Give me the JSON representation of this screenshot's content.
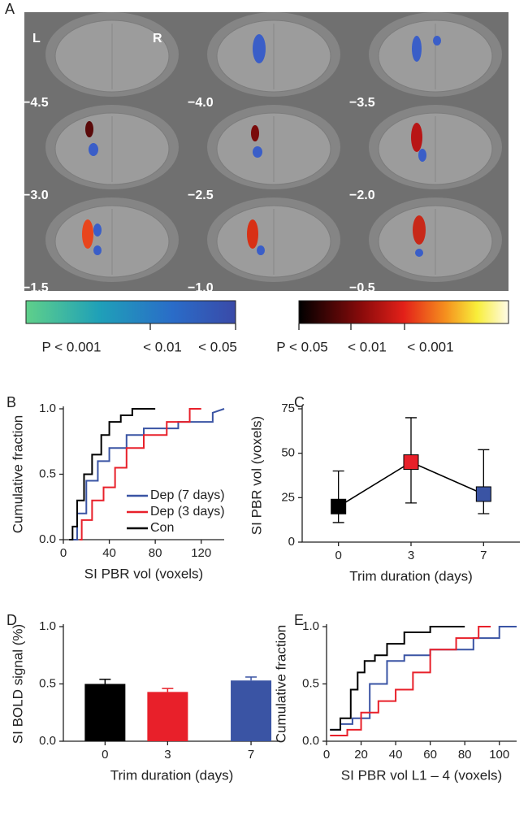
{
  "panel_a": {
    "label": "A",
    "hemispheres": [
      "L",
      "R"
    ],
    "slices": [
      "−4.5",
      "−4.0",
      "−3.5",
      "−3.0",
      "−2.5",
      "−2.0",
      "−1.5",
      "−1.0",
      "−0.5"
    ],
    "colorbar_blue": [
      "P < 0.001",
      "< 0.01",
      "< 0.05"
    ],
    "colorbar_red": [
      "P < 0.05",
      "< 0.01",
      "< 0.001"
    ]
  },
  "chart_data": [
    {
      "type": "step",
      "panel": "B",
      "xlabel": "SI PBR vol (voxels)",
      "ylabel": "Cumulative fraction",
      "xlim": [
        0,
        140
      ],
      "xticks": [
        0,
        40,
        80,
        120
      ],
      "ylim": [
        0,
        1
      ],
      "yticks": [
        {
          "value": 0,
          "label": "0.0"
        },
        {
          "value": 0.5,
          "label": "0.5"
        },
        {
          "value": 1,
          "label": "1.0"
        }
      ],
      "legend": "lower right",
      "series": [
        {
          "name": "Dep (7 days)",
          "color": "#3a54a4",
          "x": [
            8,
            12,
            12,
            20,
            20,
            30,
            30,
            40,
            40,
            55,
            55,
            70,
            70,
            100,
            100,
            130,
            130,
            140
          ],
          "values": [
            0,
            0,
            0.2,
            0.2,
            0.45,
            0.45,
            0.6,
            0.6,
            0.7,
            0.7,
            0.8,
            0.8,
            0.85,
            0.85,
            0.9,
            0.9,
            0.97,
            1
          ]
        },
        {
          "name": "Dep (3 days)",
          "color": "#e8202a",
          "x": [
            14,
            16,
            16,
            25,
            25,
            35,
            35,
            45,
            45,
            55,
            55,
            70,
            70,
            90,
            90,
            110,
            110,
            120
          ],
          "values": [
            0,
            0,
            0.15,
            0.15,
            0.3,
            0.3,
            0.4,
            0.4,
            0.55,
            0.55,
            0.7,
            0.7,
            0.8,
            0.8,
            0.9,
            0.9,
            1,
            1
          ]
        },
        {
          "name": "Con",
          "color": "#000000",
          "x": [
            5,
            8,
            8,
            12,
            12,
            18,
            18,
            25,
            25,
            33,
            33,
            40,
            40,
            50,
            50,
            60,
            60,
            80
          ],
          "values": [
            0,
            0,
            0.1,
            0.1,
            0.3,
            0.3,
            0.5,
            0.5,
            0.65,
            0.65,
            0.8,
            0.8,
            0.9,
            0.9,
            0.95,
            0.95,
            1,
            1
          ]
        }
      ]
    },
    {
      "type": "line",
      "panel": "C",
      "xlabel": "Trim duration (days)",
      "ylabel": "SI PBR vol (voxels)",
      "categories": [
        "0",
        "3",
        "7"
      ],
      "values": [
        20,
        45,
        27
      ],
      "lower": [
        11,
        22,
        16
      ],
      "upper": [
        40,
        70,
        52
      ],
      "colors": [
        "#000000",
        "#e8202a",
        "#3a54a4"
      ],
      "line_color": "#000000",
      "ylim": [
        0,
        75
      ],
      "yticks": [
        0,
        25,
        50,
        75
      ]
    },
    {
      "type": "bar",
      "panel": "D",
      "xlabel": "Trim duration (days)",
      "ylabel": "SI BOLD signal (%)",
      "x": [
        0,
        3,
        7
      ],
      "xlim": [
        -2,
        8.4
      ],
      "xticks": [
        0,
        3,
        7
      ],
      "values": [
        0.5,
        0.43,
        0.53
      ],
      "errors": [
        0.04,
        0.03,
        0.03
      ],
      "colors": [
        "#000000",
        "#e8202a",
        "#3a54a4"
      ],
      "ylim": [
        0,
        1
      ],
      "yticks": [
        {
          "value": 0,
          "label": "0.0"
        },
        {
          "value": 0.5,
          "label": "0.5"
        },
        {
          "value": 1,
          "label": "1.0"
        }
      ]
    },
    {
      "type": "step",
      "panel": "E",
      "xlabel": "SI PBR vol L1 – 4 (voxels)",
      "ylabel": "Cumulative fraction",
      "xlim": [
        0,
        110
      ],
      "xticks": [
        0,
        20,
        40,
        60,
        80,
        100
      ],
      "ylim": [
        0,
        1
      ],
      "yticks": [
        {
          "value": 0,
          "label": "0.0"
        },
        {
          "value": 0.5,
          "label": "0.5"
        },
        {
          "value": 1,
          "label": "1.0"
        }
      ],
      "series": [
        {
          "color": "#3a54a4",
          "x": [
            2,
            8,
            8,
            15,
            15,
            25,
            25,
            35,
            35,
            45,
            45,
            60,
            60,
            85,
            85,
            100,
            100,
            110
          ],
          "values": [
            0.1,
            0.1,
            0.15,
            0.15,
            0.2,
            0.2,
            0.5,
            0.5,
            0.7,
            0.7,
            0.75,
            0.75,
            0.8,
            0.8,
            0.9,
            0.9,
            1,
            1
          ]
        },
        {
          "color": "#e8202a",
          "x": [
            2,
            12,
            12,
            20,
            20,
            30,
            30,
            40,
            40,
            50,
            50,
            60,
            60,
            75,
            75,
            88,
            88,
            95
          ],
          "values": [
            0.05,
            0.05,
            0.1,
            0.1,
            0.25,
            0.25,
            0.35,
            0.35,
            0.45,
            0.45,
            0.6,
            0.6,
            0.8,
            0.8,
            0.9,
            0.9,
            1,
            1
          ]
        },
        {
          "color": "#000000",
          "x": [
            2,
            8,
            8,
            14,
            14,
            18,
            18,
            22,
            22,
            28,
            28,
            35,
            35,
            45,
            45,
            60,
            60,
            80
          ],
          "values": [
            0.1,
            0.1,
            0.2,
            0.2,
            0.45,
            0.45,
            0.6,
            0.6,
            0.7,
            0.7,
            0.75,
            0.75,
            0.85,
            0.85,
            0.95,
            0.95,
            1,
            1
          ]
        }
      ]
    }
  ]
}
